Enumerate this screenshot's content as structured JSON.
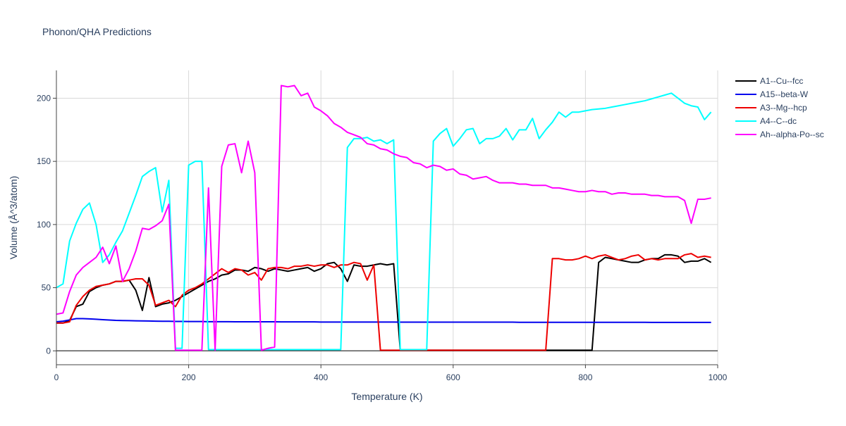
{
  "chart_data": {
    "type": "line",
    "title": "Phonon/QHA Predictions",
    "x_label": "Temperature (K)",
    "y_label": "Volume (Å^3/atom)",
    "xlim": [
      0,
      1000
    ],
    "ylim": [
      -11,
      222
    ],
    "xticks": [
      0,
      200,
      400,
      600,
      800,
      1000
    ],
    "yticks": [
      0,
      50,
      100,
      150,
      200
    ],
    "grid": true,
    "legend": "right",
    "x": [
      0,
      10,
      20,
      30,
      40,
      50,
      60,
      70,
      80,
      90,
      100,
      110,
      120,
      130,
      140,
      150,
      160,
      170,
      180,
      190,
      200,
      210,
      220,
      230,
      240,
      250,
      260,
      270,
      280,
      290,
      300,
      310,
      320,
      330,
      340,
      350,
      360,
      370,
      380,
      390,
      400,
      410,
      420,
      430,
      440,
      450,
      460,
      470,
      480,
      490,
      500,
      510,
      520,
      530,
      540,
      550,
      560,
      570,
      580,
      590,
      600,
      610,
      620,
      630,
      640,
      650,
      660,
      670,
      680,
      690,
      700,
      710,
      720,
      730,
      740,
      750,
      760,
      770,
      780,
      790,
      800,
      810,
      820,
      830,
      840,
      850,
      860,
      870,
      880,
      890,
      900,
      910,
      920,
      930,
      940,
      950,
      960,
      970,
      980,
      990
    ],
    "series": [
      {
        "name": "A1--Cu--fcc",
        "color": "#000000",
        "values": [
          22,
          22,
          24,
          35,
          37,
          47,
          50,
          52,
          53,
          55,
          55,
          56,
          48,
          32,
          58,
          35,
          37,
          38,
          40,
          43,
          46,
          49,
          52,
          55,
          57,
          60,
          61,
          64,
          64,
          63,
          66,
          65,
          63,
          65,
          64,
          63,
          64,
          65,
          66,
          63,
          65,
          69,
          70,
          65,
          55,
          68,
          67,
          67,
          68,
          69,
          68,
          69,
          0.5,
          0.5,
          0.5,
          0.5,
          0.5,
          0.5,
          0.5,
          0.5,
          0.5,
          0.5,
          0.5,
          0.5,
          0.5,
          0.5,
          0.5,
          0.5,
          0.5,
          0.5,
          0.5,
          0.5,
          0.5,
          0.5,
          0.5,
          0.5,
          0.5,
          0.5,
          0.5,
          0.5,
          0.5,
          0.5,
          70,
          74,
          73,
          72,
          71,
          70,
          70,
          72,
          73,
          73,
          76,
          76,
          75,
          70,
          71,
          71,
          73,
          70
        ]
      },
      {
        "name": "A15--beta-W",
        "color": "#0000ee",
        "values": [
          23,
          23.5,
          24.5,
          25.5,
          25.5,
          25.3,
          25,
          24.7,
          24.4,
          24.1,
          24,
          23.9,
          23.8,
          23.7,
          23.6,
          23.5,
          23.4,
          23.4,
          23.3,
          23.3,
          23.2,
          23.2,
          23.2,
          23.1,
          23.1,
          23.1,
          23.1,
          23,
          23,
          23,
          23,
          23,
          23,
          23,
          22.9,
          22.9,
          22.9,
          22.9,
          22.9,
          22.9,
          22.8,
          22.8,
          22.8,
          22.8,
          22.8,
          22.8,
          22.8,
          22.8,
          22.8,
          22.8,
          22.8,
          22.8,
          22.7,
          22.7,
          22.7,
          22.7,
          22.7,
          22.7,
          22.7,
          22.7,
          22.7,
          22.7,
          22.7,
          22.7,
          22.7,
          22.7,
          22.7,
          22.7,
          22.7,
          22.7,
          22.6,
          22.6,
          22.6,
          22.6,
          22.6,
          22.6,
          22.6,
          22.6,
          22.6,
          22.6,
          22.6,
          22.6,
          22.6,
          22.6,
          22.6,
          22.6,
          22.6,
          22.6,
          22.6,
          22.6,
          22.5,
          22.5,
          22.5,
          22.5,
          22.5,
          22.5,
          22.5,
          22.5,
          22.5,
          22.5
        ]
      },
      {
        "name": "A3--Mg--hcp",
        "color": "#ee0000",
        "values": [
          22,
          22,
          23,
          36,
          43,
          48,
          51,
          52,
          53,
          55,
          55,
          56,
          57,
          57,
          52,
          36,
          38,
          40,
          35,
          44,
          48,
          50,
          53,
          57,
          61,
          65,
          62,
          65,
          64,
          60,
          62,
          56,
          65,
          66,
          66,
          65,
          67,
          67,
          68,
          67,
          68,
          68,
          66,
          68,
          68,
          70,
          69,
          56,
          68,
          0.5,
          0.5,
          0.5,
          0.5,
          0.5,
          0.5,
          0.5,
          0.5,
          0.5,
          0.5,
          0.5,
          0.5,
          0.5,
          0.5,
          0.5,
          0.5,
          0.5,
          0.5,
          0.5,
          0.5,
          0.5,
          0.5,
          0.5,
          0.5,
          0.5,
          0.5,
          73,
          73,
          72,
          72,
          73,
          75,
          73,
          75,
          76,
          74,
          72,
          73,
          75,
          76,
          72,
          73,
          72,
          73,
          73,
          73,
          76,
          77,
          74,
          75,
          74
        ]
      },
      {
        "name": "A4--C--dc",
        "color": "#00ffff",
        "values": [
          50,
          53,
          87,
          101,
          112,
          117,
          100,
          70,
          76,
          86,
          95,
          109,
          123,
          138,
          142,
          145,
          110,
          135,
          2,
          2,
          147,
          150,
          150,
          1,
          1,
          1,
          1,
          1,
          1,
          1,
          1,
          1,
          1,
          1,
          1,
          1,
          1,
          1,
          1,
          1,
          1,
          1,
          1,
          1,
          161,
          168,
          168,
          169,
          166,
          167,
          164,
          167,
          1,
          1,
          1,
          1,
          1,
          166,
          172,
          176,
          162,
          168,
          175,
          176,
          164,
          168,
          168,
          170,
          176,
          167,
          175,
          175,
          184,
          168,
          175,
          181,
          189,
          185,
          189,
          189,
          190,
          191,
          191.5,
          192,
          193,
          194,
          195,
          196,
          197,
          198,
          199.5,
          201,
          202.5,
          204,
          200,
          196,
          194,
          193,
          183,
          189
        ]
      },
      {
        "name": "Ah--alpha-Po--sc",
        "color": "#ff00ff",
        "values": [
          29,
          30,
          47,
          60,
          66,
          70,
          74,
          82,
          69,
          83,
          55,
          65,
          79,
          97,
          96,
          99,
          103,
          116,
          0.5,
          0.5,
          0.5,
          0.5,
          0.5,
          129,
          0.5,
          146,
          163,
          164,
          141,
          166,
          141,
          0.5,
          2,
          3,
          210,
          209,
          210,
          202,
          204,
          193,
          190,
          186,
          180,
          177,
          173,
          171,
          169,
          164,
          163,
          160,
          159,
          156,
          154,
          153,
          149,
          148,
          145,
          147,
          146,
          143,
          144,
          140,
          139,
          136,
          137,
          138,
          135,
          133,
          133,
          133,
          132,
          132,
          131,
          131,
          131,
          129,
          129,
          128,
          127,
          126,
          126,
          127,
          126,
          126,
          124,
          125,
          125,
          124,
          124,
          124,
          123,
          123,
          122,
          122,
          122,
          119,
          101,
          120,
          120,
          121
        ]
      }
    ]
  }
}
